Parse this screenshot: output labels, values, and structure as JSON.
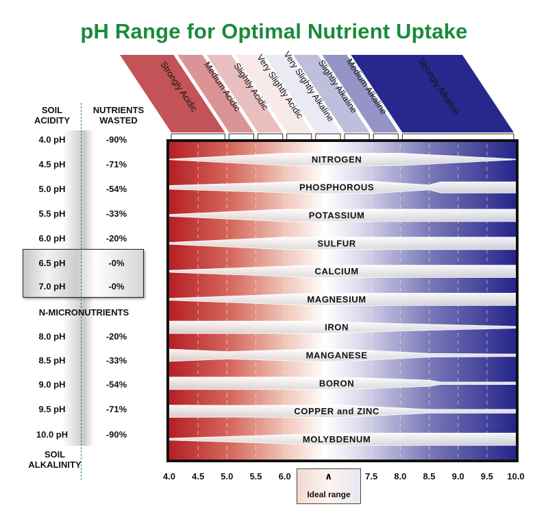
{
  "title": "pH Range for Optimal Nutrient Uptake",
  "sidebar": {
    "col1_header": [
      "SOIL",
      "ACIDITY"
    ],
    "col2_header": [
      "NUTRIENTS",
      "WASTED"
    ],
    "rows": [
      {
        "ph": "4.0 pH",
        "wasted": "-90%"
      },
      {
        "ph": "4.5 pH",
        "wasted": "-71%"
      },
      {
        "ph": "5.0 pH",
        "wasted": "-54%"
      },
      {
        "ph": "5.5 pH",
        "wasted": "-33%"
      },
      {
        "ph": "6.0 pH",
        "wasted": "-20%"
      },
      {
        "ph": "6.5 pH",
        "wasted": "-0%"
      },
      {
        "ph": "7.0 pH",
        "wasted": "-0%"
      },
      {
        "ph": "8.0 pH",
        "wasted": "-20%"
      },
      {
        "ph": "8.5 pH",
        "wasted": "-33%"
      },
      {
        "ph": "9.0 pH",
        "wasted": "-54%"
      },
      {
        "ph": "9.5 pH",
        "wasted": "-71%"
      },
      {
        "ph": "10.0 pH",
        "wasted": "-90%"
      }
    ],
    "micronutrients_label": "N-MICRONUTRIENTS",
    "footer": [
      "SOIL",
      "ALKALINITY"
    ]
  },
  "categories": [
    {
      "label": "Strongly Acidic",
      "from": 4.0,
      "to": 5.0
    },
    {
      "label": "Medium Acidic",
      "from": 5.0,
      "to": 5.5
    },
    {
      "label": "Slightly Acidic",
      "from": 5.5,
      "to": 6.0
    },
    {
      "label": "Very Slightly Acidic",
      "from": 6.0,
      "to": 6.5
    },
    {
      "label": "Very Slightly Alkaline",
      "from": 6.5,
      "to": 7.0
    },
    {
      "label": "Slightly Alkaline",
      "from": 7.0,
      "to": 7.5
    },
    {
      "label": "Medium Alkaline",
      "from": 7.5,
      "to": 8.0
    },
    {
      "label": "Strongly Alkaline",
      "from": 8.0,
      "to": 10.0
    }
  ],
  "nutrients": [
    {
      "name": "NITROGEN",
      "profile": [
        [
          4.0,
          0.05
        ],
        [
          6.0,
          1
        ],
        [
          8.0,
          1
        ],
        [
          10.0,
          0.05
        ]
      ]
    },
    {
      "name": "PHOSPHOROUS",
      "profile": [
        [
          4.0,
          0.3
        ],
        [
          6.5,
          1
        ],
        [
          7.5,
          1
        ],
        [
          8.5,
          0.4
        ],
        [
          8.7,
          0.9
        ],
        [
          10.0,
          0.9
        ]
      ]
    },
    {
      "name": "POTASSIUM",
      "profile": [
        [
          4.0,
          0.15
        ],
        [
          6.0,
          1
        ],
        [
          10.0,
          1
        ]
      ]
    },
    {
      "name": "SULFUR",
      "profile": [
        [
          4.0,
          0.15
        ],
        [
          6.0,
          1
        ],
        [
          10.0,
          1
        ]
      ]
    },
    {
      "name": "CALCIUM",
      "profile": [
        [
          4.0,
          0.15
        ],
        [
          6.5,
          1
        ],
        [
          10.0,
          1
        ]
      ]
    },
    {
      "name": "MAGNESIUM",
      "profile": [
        [
          4.0,
          0.15
        ],
        [
          6.5,
          1
        ],
        [
          10.0,
          1
        ]
      ]
    },
    {
      "name": "IRON",
      "profile": [
        [
          4.0,
          1
        ],
        [
          6.5,
          1
        ],
        [
          8.0,
          0.6
        ],
        [
          10.0,
          0.15
        ]
      ]
    },
    {
      "name": "MANGANESE",
      "profile": [
        [
          4.0,
          1
        ],
        [
          5.0,
          0.6
        ],
        [
          6.5,
          1
        ],
        [
          7.0,
          1
        ],
        [
          8.5,
          0.3
        ],
        [
          10.0,
          0.2
        ]
      ]
    },
    {
      "name": "BORON",
      "profile": [
        [
          4.0,
          1
        ],
        [
          6.5,
          1
        ],
        [
          7.0,
          1
        ],
        [
          8.5,
          0.5
        ],
        [
          8.7,
          0.2
        ],
        [
          10.0,
          0.2
        ]
      ]
    },
    {
      "name": "COPPER and ZINC",
      "profile": [
        [
          4.0,
          1
        ],
        [
          5.0,
          0.95
        ],
        [
          7.0,
          1
        ],
        [
          8.5,
          0.3
        ],
        [
          10.0,
          0.3
        ]
      ]
    },
    {
      "name": "MOLYBDENUM",
      "profile": [
        [
          4.0,
          0.15
        ],
        [
          7.0,
          1
        ],
        [
          10.0,
          1
        ]
      ]
    }
  ],
  "x_ticks": [
    "4.0",
    "4.5",
    "5.0",
    "5.5",
    "6.0",
    "6.5",
    "7.0",
    "7.5",
    "8.0",
    "8.5",
    "9.0",
    "9.5",
    "10.0"
  ],
  "ideal_range": {
    "label": "Ideal range",
    "caret": "∧"
  },
  "colors": {
    "title": "#1a8a3a",
    "acid": "#b51f24",
    "neutral": "#ffffff",
    "alkaline": "#27278a",
    "bar": "#f5f5f5",
    "dash": "#2c8a5a"
  }
}
